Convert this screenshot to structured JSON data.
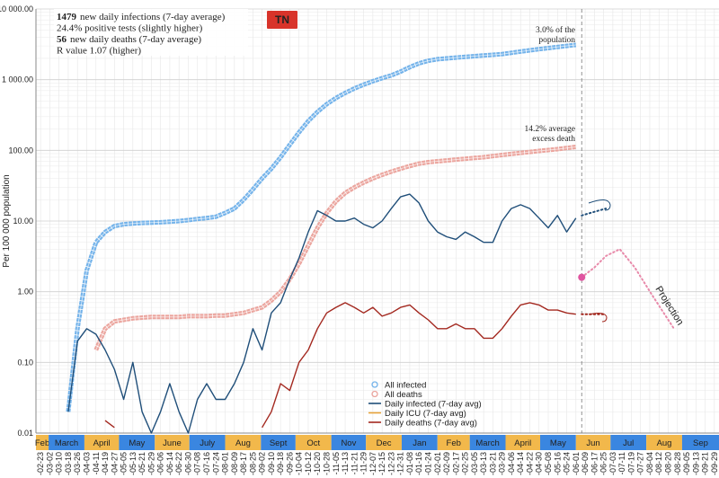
{
  "chart_data": {
    "type": "line",
    "badge": "TN",
    "y_label": "Per 100 000 population",
    "log_y": true,
    "grid": true,
    "ylim": [
      0.01,
      10000
    ],
    "yticks": [
      {
        "value": 0.01,
        "label": "0.01"
      },
      {
        "value": 0.1,
        "label": "0.10"
      },
      {
        "value": 1,
        "label": "1.00"
      },
      {
        "value": 10,
        "label": "10.00"
      },
      {
        "value": 100,
        "label": "100.00"
      },
      {
        "value": 1000,
        "label": "1 000.00"
      },
      {
        "value": 10000,
        "label": "10 000.00"
      }
    ],
    "xlim": [
      -4,
      588
    ],
    "xticks": [
      {
        "value": 0,
        "label": "-02-23"
      },
      {
        "value": 8,
        "label": "-03-02"
      },
      {
        "value": 16,
        "label": "-03-10"
      },
      {
        "value": 24,
        "label": "-03-18"
      },
      {
        "value": 32,
        "label": "-03-26"
      },
      {
        "value": 40,
        "label": "-04-03"
      },
      {
        "value": 48,
        "label": "-04-11"
      },
      {
        "value": 56,
        "label": "-04-19"
      },
      {
        "value": 64,
        "label": "-04-27"
      },
      {
        "value": 72,
        "label": "-05-05"
      },
      {
        "value": 80,
        "label": "-05-13"
      },
      {
        "value": 88,
        "label": "-05-21"
      },
      {
        "value": 96,
        "label": "-05-29"
      },
      {
        "value": 104,
        "label": "-06-06"
      },
      {
        "value": 112,
        "label": "-06-14"
      },
      {
        "value": 120,
        "label": "-06-22"
      },
      {
        "value": 128,
        "label": "-06-30"
      },
      {
        "value": 136,
        "label": "-07-08"
      },
      {
        "value": 144,
        "label": "-07-16"
      },
      {
        "value": 152,
        "label": "-07-24"
      },
      {
        "value": 160,
        "label": "-08-01"
      },
      {
        "value": 168,
        "label": "-08-09"
      },
      {
        "value": 176,
        "label": "-08-17"
      },
      {
        "value": 184,
        "label": "-08-25"
      },
      {
        "value": 192,
        "label": "-09-02"
      },
      {
        "value": 200,
        "label": "-09-10"
      },
      {
        "value": 208,
        "label": "-09-18"
      },
      {
        "value": 216,
        "label": "-09-26"
      },
      {
        "value": 224,
        "label": "-10-04"
      },
      {
        "value": 232,
        "label": "-10-12"
      },
      {
        "value": 240,
        "label": "-10-20"
      },
      {
        "value": 248,
        "label": "-10-28"
      },
      {
        "value": 256,
        "label": "-11-05"
      },
      {
        "value": 264,
        "label": "-11-13"
      },
      {
        "value": 272,
        "label": "-11-21"
      },
      {
        "value": 280,
        "label": "-11-29"
      },
      {
        "value": 288,
        "label": "-12-07"
      },
      {
        "value": 296,
        "label": "-12-15"
      },
      {
        "value": 304,
        "label": "-12-23"
      },
      {
        "value": 312,
        "label": "-12-31"
      },
      {
        "value": 320,
        "label": "-01-08"
      },
      {
        "value": 328,
        "label": "-01-16"
      },
      {
        "value": 336,
        "label": "-01-24"
      },
      {
        "value": 344,
        "label": "-02-01"
      },
      {
        "value": 352,
        "label": "-02-09"
      },
      {
        "value": 360,
        "label": "-02-17"
      },
      {
        "value": 368,
        "label": "-02-25"
      },
      {
        "value": 376,
        "label": "-03-05"
      },
      {
        "value": 384,
        "label": "-03-13"
      },
      {
        "value": 392,
        "label": "-03-21"
      },
      {
        "value": 400,
        "label": "-03-29"
      },
      {
        "value": 408,
        "label": "-04-06"
      },
      {
        "value": 416,
        "label": "-04-14"
      },
      {
        "value": 424,
        "label": "-04-22"
      },
      {
        "value": 432,
        "label": "-04-30"
      },
      {
        "value": 440,
        "label": "-05-08"
      },
      {
        "value": 448,
        "label": "-05-16"
      },
      {
        "value": 456,
        "label": "-05-24"
      },
      {
        "value": 464,
        "label": "-06-01"
      },
      {
        "value": 472,
        "label": "-06-09"
      },
      {
        "value": 480,
        "label": "-06-17"
      },
      {
        "value": 488,
        "label": "-06-25"
      },
      {
        "value": 496,
        "label": "-07-03"
      },
      {
        "value": 504,
        "label": "-07-11"
      },
      {
        "value": 512,
        "label": "-07-19"
      },
      {
        "value": 520,
        "label": "-07-27"
      },
      {
        "value": 528,
        "label": "-08-04"
      },
      {
        "value": 536,
        "label": "-08-12"
      },
      {
        "value": 544,
        "label": "-08-20"
      },
      {
        "value": 552,
        "label": "-08-28"
      },
      {
        "value": 560,
        "label": "-09-05"
      },
      {
        "value": 568,
        "label": "-09-13"
      },
      {
        "value": 576,
        "label": "-09-21"
      },
      {
        "value": 584,
        "label": "-09-29"
      }
    ],
    "month_bands": {
      "labels": [
        "Feb",
        "March",
        "April",
        "May",
        "June",
        "July",
        "Aug",
        "Sept",
        "Oct",
        "Nov",
        "Dec",
        "Jan",
        "Feb",
        "March",
        "April",
        "May",
        "Jun",
        "Jul",
        "Aug",
        "Sep"
      ],
      "starts": [
        -4,
        7,
        38,
        68,
        99,
        129,
        160,
        191,
        221,
        252,
        282,
        313,
        344,
        372,
        403,
        433,
        464,
        494,
        525,
        556
      ],
      "colors": [
        "#f2b84b",
        "#3a86e0"
      ]
    },
    "marker_x": 469,
    "x": [
      0,
      8,
      16,
      24,
      32,
      40,
      48,
      56,
      64,
      72,
      80,
      88,
      96,
      104,
      112,
      120,
      128,
      136,
      144,
      152,
      160,
      168,
      176,
      184,
      192,
      200,
      208,
      216,
      224,
      232,
      240,
      248,
      256,
      264,
      272,
      280,
      288,
      296,
      304,
      312,
      320,
      328,
      336,
      344,
      352,
      360,
      368,
      376,
      384,
      392,
      400,
      408,
      416,
      424,
      432,
      440,
      448,
      456,
      464
    ],
    "series": [
      {
        "name": "All infected",
        "color": "#74b3ea",
        "marker": "circle",
        "values": [
          null,
          null,
          null,
          0.02,
          0.3,
          2,
          5,
          7,
          8.5,
          9,
          9.2,
          9.4,
          9.5,
          9.6,
          9.8,
          10,
          10.3,
          10.7,
          11,
          11.5,
          13,
          15,
          20,
          28,
          40,
          55,
          80,
          120,
          180,
          260,
          350,
          450,
          550,
          650,
          750,
          850,
          950,
          1050,
          1150,
          1300,
          1500,
          1700,
          1850,
          1950,
          2000,
          2050,
          2100,
          2150,
          2200,
          2250,
          2300,
          2400,
          2500,
          2600,
          2700,
          2800,
          2900,
          3000,
          3100
        ]
      },
      {
        "name": "All deaths",
        "color": "#eba59e",
        "marker": "circle",
        "values": [
          null,
          null,
          null,
          null,
          null,
          null,
          0.15,
          0.3,
          0.38,
          0.4,
          0.42,
          0.43,
          0.44,
          0.44,
          0.44,
          0.44,
          0.45,
          0.45,
          0.45,
          0.46,
          0.46,
          0.48,
          0.5,
          0.55,
          0.6,
          0.75,
          1.0,
          1.5,
          2.5,
          4.5,
          8,
          13,
          19,
          25,
          30,
          35,
          40,
          45,
          50,
          55,
          60,
          65,
          68,
          70,
          72,
          74,
          76,
          78,
          80,
          83,
          86,
          89,
          92,
          95,
          98,
          101,
          104,
          108,
          112
        ]
      },
      {
        "name": "Daily infected (7-day avg)",
        "color": "#1f4e79",
        "marker": "line",
        "values": [
          null,
          null,
          null,
          0.02,
          0.2,
          0.3,
          0.25,
          0.15,
          0.08,
          0.03,
          0.1,
          0.02,
          0.01,
          0.02,
          0.05,
          0.02,
          0.01,
          0.03,
          0.05,
          0.03,
          0.03,
          0.05,
          0.1,
          0.3,
          0.15,
          0.5,
          0.7,
          1.5,
          3,
          7,
          14,
          12,
          10,
          10,
          11,
          9,
          8,
          10,
          15,
          22,
          24,
          18,
          10,
          7,
          6,
          5.5,
          7,
          6,
          5,
          5,
          10,
          15,
          17,
          15,
          11,
          8,
          12,
          7,
          11
        ]
      },
      {
        "name": "Daily ICU (7-day avg)",
        "color": "#e8a33a",
        "marker": "line",
        "values": [
          null,
          null,
          null,
          null,
          null,
          null,
          null,
          null,
          null,
          null,
          null,
          null,
          null,
          null,
          null,
          null,
          null,
          null,
          null,
          null,
          null,
          null,
          null,
          null,
          null,
          null,
          null,
          null,
          null,
          null,
          null,
          null,
          null,
          null,
          null,
          null,
          null,
          null,
          null,
          null,
          null,
          null,
          null,
          null,
          null,
          null,
          null,
          null,
          null,
          null,
          null,
          null,
          null,
          null,
          null,
          null,
          null,
          null,
          null
        ]
      },
      {
        "name": "Daily deaths (7-day avg)",
        "color": "#a3281f",
        "marker": "line",
        "values": [
          null,
          null,
          null,
          null,
          null,
          null,
          null,
          0.015,
          0.012,
          null,
          null,
          null,
          null,
          null,
          null,
          null,
          null,
          null,
          null,
          null,
          null,
          null,
          null,
          null,
          0.012,
          0.02,
          0.05,
          0.04,
          0.1,
          0.15,
          0.3,
          0.5,
          0.6,
          0.7,
          0.6,
          0.5,
          0.6,
          0.45,
          0.5,
          0.6,
          0.65,
          0.5,
          0.4,
          0.3,
          0.3,
          0.35,
          0.3,
          0.3,
          0.22,
          0.22,
          0.3,
          0.45,
          0.65,
          0.7,
          0.65,
          0.55,
          0.55,
          0.5,
          0.48
        ]
      }
    ],
    "projections": [
      {
        "color": "#e88aaa",
        "x": [
          469,
          480,
          490,
          502,
          515,
          530,
          549
        ],
        "values": [
          1.6,
          2.2,
          3.2,
          4,
          2.2,
          0.9,
          0.3
        ]
      },
      {
        "color": "#1f4e79",
        "x": [
          469,
          480,
          490
        ],
        "values": [
          12,
          13.5,
          15
        ]
      },
      {
        "color": "#a3281f",
        "x": [
          469,
          480,
          490
        ],
        "values": [
          0.48,
          0.48,
          0.48
        ]
      }
    ],
    "projection_label": "Projection",
    "annotations": [
      {
        "lines": [
          "3.0% of the",
          "population"
        ],
        "color": "#4a9ee0"
      },
      {
        "lines": [
          "14.2% average",
          "excess death"
        ],
        "color": "#e06a4a"
      }
    ],
    "info": [
      {
        "value": 1479,
        "text": "new daily infections (7-day average)",
        "color": "#4a9ee0"
      },
      {
        "text": "24.4% positive tests (slightly higher)",
        "color": "#222222"
      },
      {
        "value": 56,
        "text": "new daily deaths (7-day average)",
        "color": "#b02a20"
      },
      {
        "text": "R value 1.07 (higher)",
        "color": "#222222"
      }
    ],
    "legend": "bottom-center"
  }
}
